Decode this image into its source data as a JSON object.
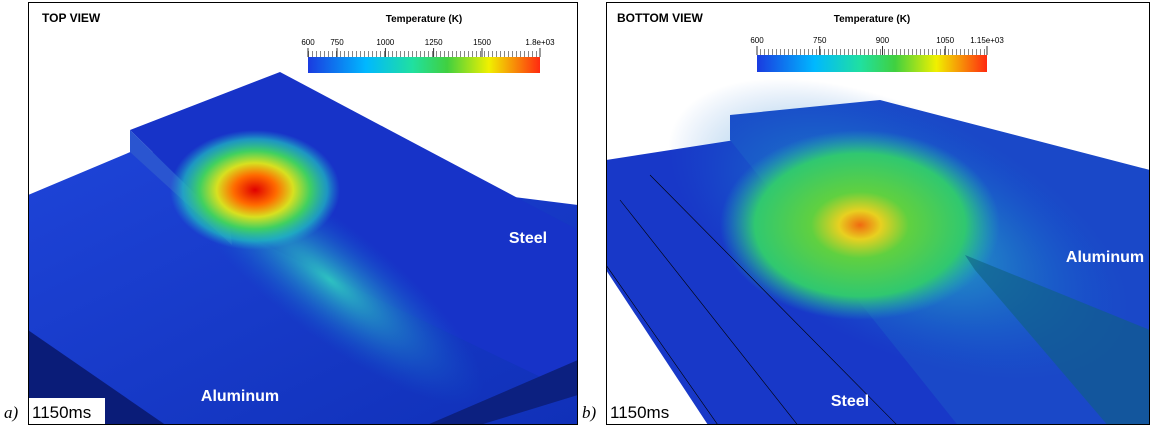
{
  "panels": [
    {
      "label": "a)",
      "title": "TOP VIEW",
      "colorbar": {
        "title": "Temperature (K)",
        "ticks": [
          600,
          750,
          1000,
          1250,
          1500,
          {
            "value": 1800,
            "label": "1.8e+03"
          }
        ]
      },
      "materials": [
        "Steel",
        "Aluminum"
      ],
      "time": "1150ms"
    },
    {
      "label": "b)",
      "title": "BOTTOM VIEW",
      "colorbar": {
        "title": "Temperature (K)",
        "ticks": [
          600,
          750,
          900,
          1050,
          {
            "value": 1150,
            "label": "1.15e+03"
          }
        ]
      },
      "materials": [
        "Aluminum",
        "Steel"
      ],
      "time": "1150ms"
    }
  ]
}
